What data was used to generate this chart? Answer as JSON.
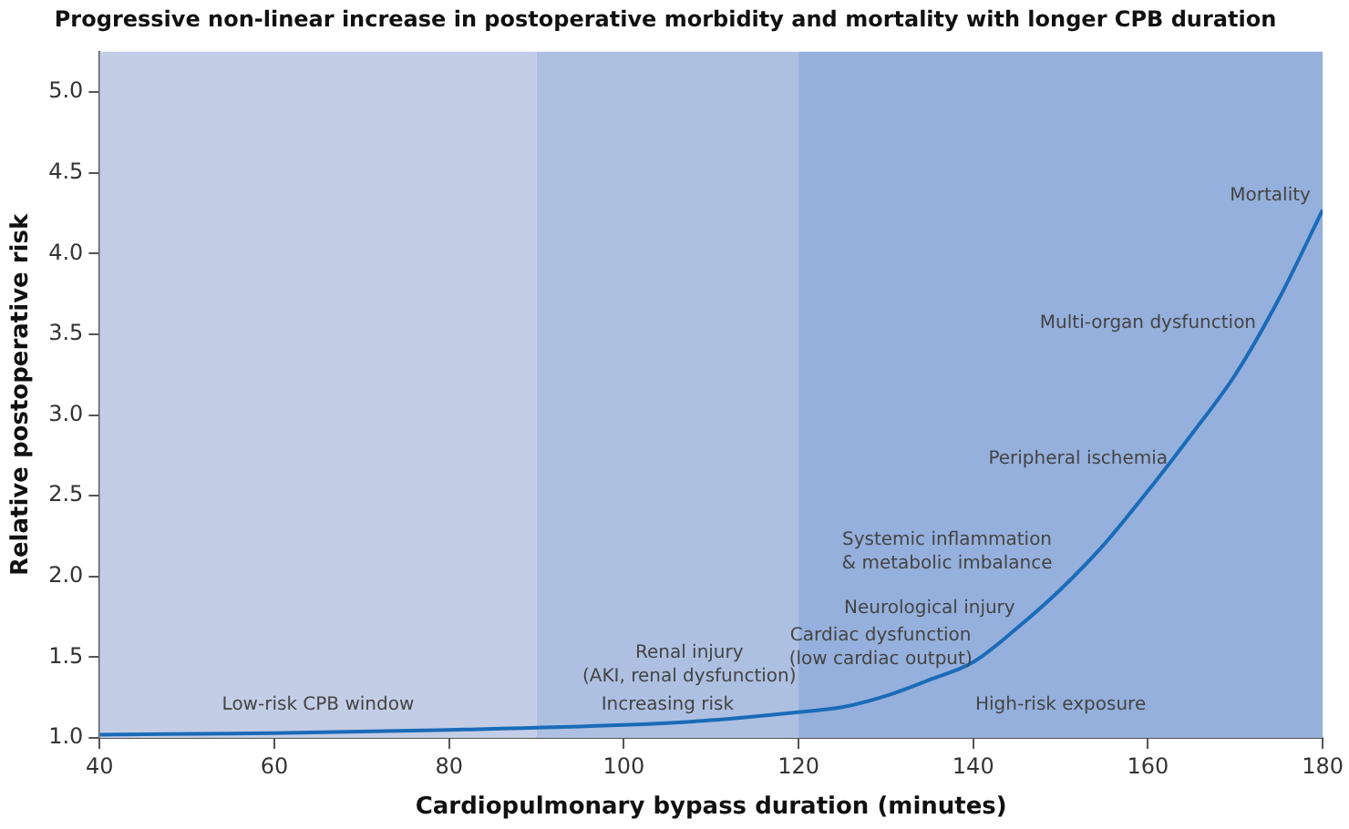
{
  "chart_data": {
    "type": "line",
    "title": "Progressive non-linear increase in postoperative morbidity and mortality with longer CPB duration",
    "xlabel": "Cardiopulmonary bypass duration (minutes)",
    "ylabel": "Relative postoperative risk",
    "x": [
      40,
      60,
      80,
      100,
      110,
      120,
      125,
      130,
      135,
      140,
      145,
      150,
      155,
      160,
      165,
      170,
      175,
      180
    ],
    "series": [
      {
        "color": "#1a6bb8",
        "values": [
          1.02,
          1.03,
          1.05,
          1.08,
          1.11,
          1.16,
          1.19,
          1.26,
          1.36,
          1.47,
          1.68,
          1.92,
          2.2,
          2.53,
          2.88,
          3.25,
          3.72,
          4.27
        ]
      }
    ],
    "xlim": [
      40,
      180
    ],
    "xticks": [
      40,
      60,
      80,
      100,
      120,
      140,
      160,
      180
    ],
    "ylim": [
      1.0,
      5.25
    ],
    "yticks": [
      {
        "value": 1,
        "label": "1.0"
      },
      {
        "value": 1.5,
        "label": "1.5"
      },
      {
        "value": 2,
        "label": "2.0"
      },
      {
        "value": 2.5,
        "label": "2.5"
      },
      {
        "value": 3,
        "label": "3.0"
      },
      {
        "value": 3.5,
        "label": "3.5"
      },
      {
        "value": 4,
        "label": "4.0"
      },
      {
        "value": 4.5,
        "label": "4.5"
      },
      {
        "value": 5,
        "label": "5.0"
      }
    ],
    "bands": [
      {
        "axis": "x",
        "from": 40,
        "to": 90,
        "label": "Low-risk CPB window",
        "color": "#c3cde6"
      },
      {
        "axis": "x",
        "from": 90,
        "to": 120,
        "label": "Increasing risk",
        "color": "#adc0e2"
      },
      {
        "axis": "x",
        "from": 120,
        "to": 180,
        "label": "High-risk exposure",
        "color": "#95b0dc"
      }
    ],
    "annotations": [
      "Mortality",
      "Multi-organ dysfunction",
      "Peripheral ischemia",
      "Systemic inflammation\n& metabolic imbalance",
      "Neurological injury",
      "Cardiac dysfunction\n(low cardiac output)",
      "Renal injury\n(AKI, renal dysfunction)"
    ],
    "grid": false,
    "legend": false,
    "marker": "none",
    "line_style": "solid"
  }
}
